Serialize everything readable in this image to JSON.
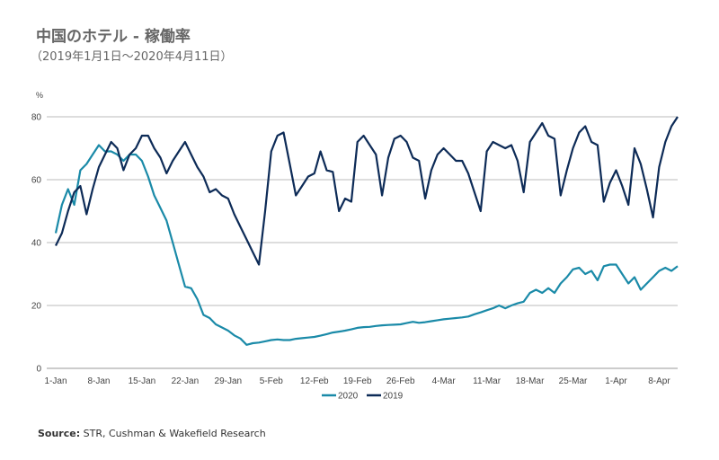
{
  "chart_data": {
    "type": "line",
    "title": "中国のホテル - 稼働率",
    "subtitle": "（2019年1月1日～2020年4月11日）",
    "ylabel": "%",
    "ylim": [
      0,
      80
    ],
    "yticks": [
      0,
      20,
      40,
      60,
      80
    ],
    "x_tick_labels": [
      "1-Jan",
      "8-Jan",
      "15-Jan",
      "22-Jan",
      "29-Jan",
      "5-Feb",
      "12-Feb",
      "19-Feb",
      "26-Feb",
      "4-Mar",
      "11-Mar",
      "18-Mar",
      "25-Mar",
      "1-Apr",
      "8-Apr"
    ],
    "x_tick_days": [
      0,
      7,
      14,
      21,
      28,
      35,
      42,
      49,
      56,
      63,
      70,
      77,
      84,
      91,
      98
    ],
    "x_range_days": [
      0,
      101
    ],
    "grid": "horizontal",
    "legend": "bottom-center",
    "series": [
      {
        "name": "2020",
        "color": "#1a8aa8",
        "x": [
          0,
          1,
          2,
          3,
          4,
          5,
          6,
          7,
          8,
          9,
          10,
          11,
          12,
          13,
          14,
          15,
          16,
          17,
          18,
          19,
          20,
          21,
          22,
          23,
          24,
          25,
          26,
          27,
          28,
          29,
          30,
          31,
          32,
          33,
          34,
          35,
          36,
          37,
          38,
          39,
          40,
          41,
          42,
          43,
          44,
          45,
          46,
          47,
          48,
          49,
          50,
          51,
          52,
          53,
          54,
          55,
          56,
          57,
          58,
          59,
          60,
          61,
          62,
          63,
          64,
          65,
          66,
          67,
          68,
          69,
          70,
          71,
          72,
          73,
          74,
          75,
          76,
          77,
          78,
          79,
          80,
          81,
          82,
          83,
          84,
          85,
          86,
          87,
          88,
          89,
          90,
          91,
          92,
          93,
          94,
          95,
          96,
          97,
          98,
          99,
          100,
          101
        ],
        "values": [
          43,
          52,
          57,
          52,
          63,
          65,
          68,
          71,
          69,
          69,
          68,
          66,
          68,
          68,
          66,
          61,
          55,
          51,
          47,
          40,
          33,
          26,
          25.5,
          22,
          17,
          16,
          14,
          13,
          12,
          10.5,
          9.5,
          7.5,
          8,
          8.2,
          8.6,
          9,
          9.2,
          9,
          9,
          9.4,
          9.6,
          9.8,
          10,
          10.4,
          10.9,
          11.4,
          11.7,
          12,
          12.4,
          12.9,
          13.1,
          13.2,
          13.5,
          13.7,
          13.8,
          13.9,
          14,
          14.4,
          14.8,
          14.5,
          14.7,
          15,
          15.3,
          15.6,
          15.8,
          16,
          16.2,
          16.5,
          17.2,
          17.8,
          18.5,
          19.1,
          20,
          19.1,
          20,
          20.7,
          21.2,
          24,
          25,
          24,
          25.5,
          24,
          27,
          29,
          31.5,
          32,
          30,
          31,
          28,
          32.5,
          33,
          33,
          30,
          27,
          29,
          25,
          27,
          29,
          31,
          32,
          31,
          32.5
        ]
      },
      {
        "name": "2019",
        "color": "#0d2b57",
        "x": [
          0,
          1,
          2,
          3,
          4,
          5,
          6,
          7,
          8,
          9,
          10,
          11,
          12,
          13,
          14,
          15,
          16,
          17,
          18,
          19,
          20,
          21,
          22,
          23,
          24,
          25,
          26,
          27,
          28,
          29,
          30,
          31,
          32,
          33,
          34,
          35,
          36,
          37,
          38,
          39,
          40,
          41,
          42,
          43,
          44,
          45,
          46,
          47,
          48,
          49,
          50,
          51,
          52,
          53,
          54,
          55,
          56,
          57,
          58,
          59,
          60,
          61,
          62,
          63,
          64,
          65,
          66,
          67,
          68,
          69,
          70,
          71,
          72,
          73,
          74,
          75,
          76,
          77,
          78,
          79,
          80,
          81,
          82,
          83,
          84,
          85,
          86,
          87,
          88,
          89,
          90,
          91,
          92,
          93,
          94,
          95,
          96,
          97,
          98,
          99,
          100,
          101
        ],
        "values": [
          39,
          43,
          50,
          56,
          58,
          49,
          57,
          64,
          68,
          72,
          70,
          63,
          68,
          70,
          74,
          74,
          70,
          67,
          62,
          66,
          69,
          72,
          68,
          64,
          61,
          56,
          57,
          55,
          54,
          49,
          45,
          41,
          37,
          33,
          50,
          69,
          74,
          75,
          65,
          55,
          58,
          61,
          62,
          69,
          63,
          62.5,
          50,
          54,
          53,
          72,
          74,
          71,
          68,
          55,
          67,
          73,
          74,
          72,
          67,
          66,
          54,
          63,
          68,
          70,
          68,
          66,
          66,
          62,
          56,
          50,
          69,
          72,
          71,
          70,
          71,
          66,
          56,
          72,
          75,
          78,
          74,
          73,
          55,
          63,
          70,
          75,
          77,
          72,
          71,
          53,
          59,
          63,
          58,
          52,
          70,
          65,
          57,
          48,
          64,
          72,
          77,
          80
        ]
      }
    ]
  },
  "source": {
    "label": "Source:",
    "text": " STR, Cushman & Wakefield Research"
  }
}
